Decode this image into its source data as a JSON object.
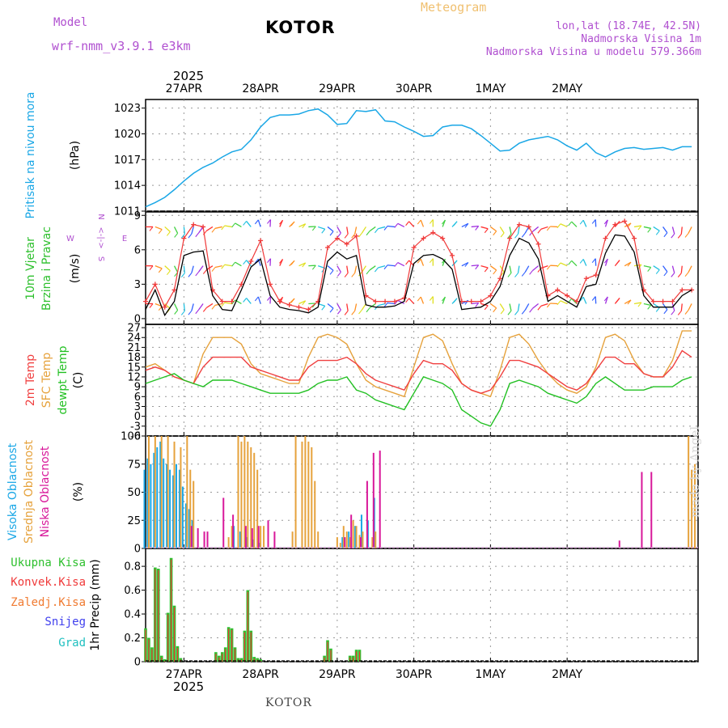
{
  "header": {
    "model_label": "Model",
    "model_name": "wrf-nmm_v3.9.1  e3km",
    "station_title": "KOTOR",
    "chart_kind": "Meteogram",
    "coords": "lon,lat (18.74E, 42.5N)",
    "altitude": "Nadmorska Visina 1m",
    "model_altitude": "Nadmorska Visina u modelu 579.366m",
    "year_top": "2025",
    "year_bottom": "2025",
    "footer_station": "KOTOR",
    "watermark": "made by Angel"
  },
  "colors": {
    "pressure": "#1aa7e6",
    "wind_speed": "#000000",
    "wind_gust": "#f03a3a",
    "temp_2m": "#f04040",
    "temp_sfc": "#e6a23c",
    "dewpoint": "#22c022",
    "cloud_high": "#1aa7e6",
    "cloud_mid": "#e6a23c",
    "cloud_low": "#d8189a",
    "precip_total": "#2ec02e",
    "precip_conv": "#f03a3a",
    "precip_frozen": "#f07a30",
    "precip_snow": "#4040ee",
    "precip_graupel": "#20c0c0",
    "ylabel_purple": "#b050d0"
  },
  "chart_data": [
    {
      "id": "pressure",
      "type": "line",
      "title": "Pritisak na nivou mora",
      "ylabel": "(hPa)",
      "ylim": [
        1011,
        1024
      ],
      "yticks": [
        1011,
        1014,
        1017,
        1020,
        1023
      ],
      "x_hours": [
        0,
        3,
        6,
        9,
        12,
        15,
        18,
        21,
        24,
        27,
        30,
        33,
        36,
        39,
        42,
        45,
        48,
        51,
        54,
        57,
        60,
        63,
        66,
        69,
        72,
        75,
        78,
        81,
        84,
        87,
        90,
        93,
        96,
        99,
        102,
        105,
        108,
        111,
        114,
        117,
        120,
        123,
        126,
        129,
        132,
        135,
        138,
        141,
        144,
        147,
        150,
        153,
        156,
        159,
        162,
        165,
        168,
        171
      ],
      "values": [
        1011.5,
        1012.0,
        1012.6,
        1013.5,
        1014.5,
        1015.4,
        1016.1,
        1016.6,
        1017.3,
        1017.9,
        1018.2,
        1019.3,
        1020.8,
        1021.9,
        1022.2,
        1022.2,
        1022.3,
        1022.7,
        1022.9,
        1022.2,
        1021.1,
        1021.2,
        1022.7,
        1022.6,
        1022.8,
        1021.5,
        1021.4,
        1020.8,
        1020.3,
        1019.7,
        1019.8,
        1020.8,
        1021.0,
        1021.0,
        1020.6,
        1019.8,
        1018.9,
        1018.0,
        1018.1,
        1018.9,
        1019.3,
        1019.5,
        1019.7,
        1019.3,
        1018.6,
        1018.1,
        1018.9,
        1017.8,
        1017.3,
        1017.9,
        1018.3,
        1018.4,
        1018.2,
        1018.3,
        1018.4,
        1018.1,
        1018.5,
        1018.5
      ]
    },
    {
      "id": "wind",
      "type": "line",
      "title": "10m Vjetar",
      "subtitle": "Brzina i Pravac",
      "ylabel": "(m/s)",
      "compass": [
        "N",
        "<-|->",
        "W",
        "E",
        "S"
      ],
      "ylim": [
        -0.5,
        9.3
      ],
      "yticks": [
        0,
        3,
        6,
        9
      ],
      "x_hours": [
        0,
        3,
        6,
        9,
        12,
        15,
        18,
        21,
        24,
        27,
        30,
        33,
        36,
        39,
        42,
        45,
        48,
        51,
        54,
        57,
        60,
        63,
        66,
        69,
        72,
        75,
        78,
        81,
        84,
        87,
        90,
        93,
        96,
        99,
        102,
        105,
        108,
        111,
        114,
        117,
        120,
        123,
        126,
        129,
        132,
        135,
        138,
        141,
        144,
        147,
        150,
        153,
        156,
        159,
        162,
        165,
        168,
        171
      ],
      "series": [
        {
          "name": "speed",
          "values": [
            0.8,
            2.5,
            0.3,
            1.5,
            5.5,
            5.8,
            5.9,
            2.0,
            0.8,
            0.7,
            2.5,
            4.5,
            5.2,
            2.0,
            1.0,
            0.8,
            0.7,
            0.5,
            1.0,
            5.0,
            5.8,
            5.2,
            5.5,
            1.2,
            1.0,
            1.0,
            1.1,
            1.5,
            4.8,
            5.5,
            5.6,
            5.2,
            4.3,
            0.8,
            0.9,
            1.0,
            1.5,
            2.8,
            5.5,
            7.0,
            6.6,
            5.2,
            1.5,
            2.0,
            1.5,
            1.0,
            2.8,
            3.0,
            5.7,
            7.3,
            7.2,
            5.8,
            2.0,
            1.0,
            1.0,
            1.0,
            2.0,
            2.5
          ]
        },
        {
          "name": "gust",
          "values": [
            1.5,
            3.0,
            1.0,
            2.5,
            7.0,
            8.2,
            8.0,
            2.5,
            1.5,
            1.5,
            3.0,
            5.0,
            6.8,
            3.0,
            1.5,
            1.2,
            1.0,
            0.8,
            1.5,
            6.2,
            7.0,
            6.5,
            7.2,
            2.0,
            1.5,
            1.5,
            1.5,
            1.8,
            6.2,
            7.0,
            7.5,
            7.0,
            5.5,
            1.5,
            1.5,
            1.5,
            2.0,
            3.5,
            7.0,
            8.2,
            8.0,
            6.5,
            2.0,
            2.5,
            2.0,
            1.5,
            3.5,
            3.8,
            7.0,
            8.2,
            8.5,
            7.0,
            2.5,
            1.5,
            1.5,
            1.5,
            2.5,
            2.5
          ]
        }
      ]
    },
    {
      "id": "temperature",
      "type": "line",
      "titles": [
        "2m Temp",
        "SFC Temp",
        "dewpt Temp"
      ],
      "ylabel": "(C)",
      "ylim": [
        -6,
        28
      ],
      "yticks": [
        -6,
        -3,
        0,
        3,
        6,
        9,
        12,
        15,
        18,
        21,
        24,
        27
      ],
      "x_hours": [
        0,
        3,
        6,
        9,
        12,
        15,
        18,
        21,
        24,
        27,
        30,
        33,
        36,
        39,
        42,
        45,
        48,
        51,
        54,
        57,
        60,
        63,
        66,
        69,
        72,
        75,
        78,
        81,
        84,
        87,
        90,
        93,
        96,
        99,
        102,
        105,
        108,
        111,
        114,
        117,
        120,
        123,
        126,
        129,
        132,
        135,
        138,
        141,
        144,
        147,
        150,
        153,
        156,
        159,
        162,
        165,
        168,
        171
      ],
      "series": [
        {
          "name": "2m Temp",
          "values": [
            14,
            15,
            14,
            12,
            11,
            10,
            15,
            18,
            18,
            18,
            18,
            15,
            14,
            13,
            12,
            11,
            11,
            15,
            17,
            17,
            17,
            18,
            16,
            13,
            11,
            10,
            9,
            8,
            13,
            17,
            16,
            16,
            14,
            10,
            8,
            7,
            8,
            12,
            17,
            17,
            16,
            15,
            13,
            11,
            9,
            8,
            10,
            14,
            18,
            18,
            16,
            16,
            13,
            12,
            12,
            15,
            20,
            18
          ]
        },
        {
          "name": "SFC Temp",
          "values": [
            15,
            16,
            14,
            12,
            11,
            10,
            19,
            24,
            24,
            24,
            22,
            16,
            13,
            12,
            11,
            10,
            10,
            18,
            24,
            25,
            24,
            22,
            16,
            11,
            9,
            8,
            7,
            6,
            15,
            24,
            25,
            23,
            16,
            10,
            8,
            7,
            6,
            14,
            24,
            25,
            22,
            17,
            13,
            10,
            8,
            7,
            9,
            15,
            24,
            25,
            23,
            17,
            13,
            12,
            12,
            17,
            26,
            26
          ]
        },
        {
          "name": "dewpt Temp",
          "values": [
            10,
            11,
            12,
            13,
            11,
            10,
            9,
            11,
            11,
            11,
            10,
            9,
            8,
            7,
            7,
            7,
            7,
            8,
            10,
            11,
            11,
            12,
            8,
            7,
            5,
            4,
            3,
            2,
            7,
            12,
            11,
            10,
            8,
            2,
            0,
            -2,
            -3,
            2,
            10,
            11,
            10,
            9,
            7,
            6,
            5,
            4,
            6,
            10,
            12,
            10,
            8,
            8,
            8,
            9,
            9,
            9,
            11,
            12
          ]
        }
      ]
    },
    {
      "id": "clouds",
      "type": "bar",
      "titles": [
        "Visoka Oblacnost",
        "Srednja Oblacnost",
        "Niska Oblacnost"
      ],
      "ylabel": "(%)",
      "ylim": [
        0,
        100
      ],
      "yticks": [
        0,
        25,
        50,
        75,
        100
      ],
      "series": [
        {
          "name": "high",
          "x_hours": [
            0,
            1,
            2,
            3,
            4,
            5,
            6,
            7,
            8,
            9,
            10,
            11,
            12,
            13,
            14,
            15,
            28,
            30,
            32,
            34,
            36,
            62,
            64,
            66,
            68,
            70,
            72
          ],
          "values": [
            70,
            80,
            75,
            85,
            90,
            95,
            80,
            75,
            70,
            65,
            75,
            70,
            55,
            40,
            35,
            25,
            20,
            15,
            10,
            8,
            5,
            10,
            15,
            20,
            30,
            25,
            45
          ]
        },
        {
          "name": "mid",
          "x_hours": [
            1,
            3,
            5,
            7,
            9,
            11,
            13,
            14,
            15,
            26,
            27,
            29,
            30,
            31,
            32,
            33,
            34,
            35,
            36,
            37,
            46,
            47,
            49,
            50,
            51,
            52,
            53,
            54,
            60,
            61,
            62,
            63,
            64,
            65,
            66,
            67,
            68,
            71,
            72,
            170,
            171,
            172
          ],
          "values": [
            100,
            100,
            100,
            100,
            95,
            90,
            100,
            70,
            60,
            10,
            20,
            100,
            95,
            100,
            95,
            90,
            85,
            70,
            20,
            20,
            15,
            100,
            95,
            100,
            95,
            90,
            60,
            15,
            10,
            5,
            20,
            15,
            10,
            25,
            20,
            12,
            15,
            10,
            15,
            100,
            70,
            75
          ]
        },
        {
          "name": "low",
          "x_hours": [
            14,
            16,
            18,
            19,
            24,
            27,
            31,
            33,
            35,
            38,
            40,
            62,
            64,
            67,
            69,
            71,
            73,
            148,
            155,
            158
          ],
          "values": [
            20,
            18,
            15,
            15,
            45,
            30,
            20,
            18,
            20,
            25,
            15,
            10,
            30,
            10,
            60,
            85,
            87,
            7,
            68,
            68
          ]
        }
      ]
    },
    {
      "id": "precip",
      "type": "bar",
      "titles": [
        "Ukupna Kisa",
        "Konvek.Kisa",
        "Zaledj.Kisa",
        "Snijeg",
        "Grad"
      ],
      "ylabel": "1hr Precip (mm)",
      "ylim": [
        0,
        0.95
      ],
      "yticks": [
        0,
        0.2,
        0.4,
        0.6,
        0.8
      ],
      "x_hours": [
        0,
        1,
        2,
        3,
        4,
        5,
        6,
        7,
        8,
        9,
        10,
        11,
        22,
        23,
        24,
        25,
        26,
        27,
        28,
        29,
        30,
        31,
        32,
        33,
        34,
        35,
        36,
        56,
        57,
        58,
        64,
        65,
        66,
        67
      ],
      "values": [
        0.28,
        0.2,
        0.12,
        0.79,
        0.78,
        0.05,
        0.02,
        0.41,
        0.87,
        0.47,
        0.13,
        0.03,
        0.08,
        0.05,
        0.08,
        0.12,
        0.29,
        0.28,
        0.12,
        0.03,
        0.03,
        0.26,
        0.6,
        0.26,
        0.04,
        0.03,
        0.02,
        0.05,
        0.18,
        0.11,
        0.05,
        0.05,
        0.1,
        0.1
      ]
    }
  ],
  "axis": {
    "day_labels": [
      "27APR",
      "28APR",
      "29APR",
      "30APR",
      "1MAY",
      "2MAY"
    ],
    "day_hours": [
      12,
      36,
      60,
      84,
      108,
      132
    ],
    "start_offset_hours": 0,
    "span_hours": 173
  }
}
